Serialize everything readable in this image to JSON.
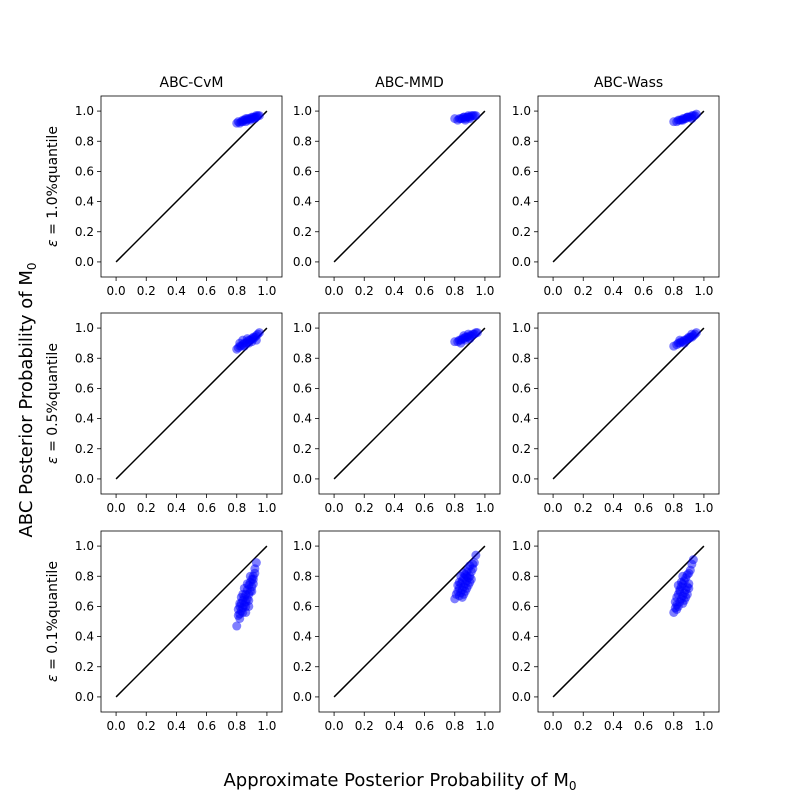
{
  "chart_data": {
    "type": "scatter",
    "title": "",
    "xlabel": "Approximate Posterior Probability of M",
    "xlabel_sub": "0",
    "ylabel": "ABC Posterior Probability of M",
    "ylabel_sub": "0",
    "column_titles": [
      "ABC-CvM",
      "ABC-MMD",
      "ABC-Wass"
    ],
    "row_labels": [
      {
        "prefix": "ε = ",
        "value": "1.0%quantile"
      },
      {
        "prefix": "ε = ",
        "value": "0.5%quantile"
      },
      {
        "prefix": "ε = ",
        "value": "0.1%quantile"
      }
    ],
    "xlim": [
      -0.1,
      1.1
    ],
    "ylim": [
      -0.1,
      1.1
    ],
    "xticks": [
      "0.0",
      "0.2",
      "0.4",
      "0.6",
      "0.8",
      "1.0"
    ],
    "yticks": [
      "0.0",
      "0.2",
      "0.4",
      "0.6",
      "0.8",
      "1.0"
    ],
    "reference_line": {
      "from": [
        0,
        0
      ],
      "to": [
        1,
        1
      ],
      "color": "#000000"
    },
    "point_color": "#0000ff",
    "panels": [
      {
        "row": 0,
        "col": 0,
        "x": [
          0.8,
          0.82,
          0.83,
          0.84,
          0.85,
          0.86,
          0.87,
          0.88,
          0.89,
          0.9,
          0.91,
          0.92,
          0.93,
          0.94,
          0.95,
          0.81,
          0.84,
          0.87,
          0.9,
          0.93,
          0.86,
          0.89,
          0.92
        ],
        "y": [
          0.92,
          0.92,
          0.93,
          0.93,
          0.94,
          0.93,
          0.94,
          0.95,
          0.95,
          0.95,
          0.96,
          0.96,
          0.96,
          0.97,
          0.97,
          0.93,
          0.94,
          0.95,
          0.96,
          0.97,
          0.95,
          0.94,
          0.95
        ]
      },
      {
        "row": 0,
        "col": 1,
        "x": [
          0.8,
          0.82,
          0.83,
          0.85,
          0.86,
          0.87,
          0.88,
          0.89,
          0.9,
          0.91,
          0.92,
          0.93,
          0.94,
          0.84,
          0.87,
          0.9,
          0.86,
          0.89
        ],
        "y": [
          0.95,
          0.94,
          0.95,
          0.95,
          0.96,
          0.95,
          0.96,
          0.96,
          0.96,
          0.97,
          0.97,
          0.97,
          0.97,
          0.95,
          0.94,
          0.95,
          0.96,
          0.97
        ]
      },
      {
        "row": 0,
        "col": 2,
        "x": [
          0.8,
          0.82,
          0.83,
          0.84,
          0.85,
          0.86,
          0.87,
          0.88,
          0.89,
          0.9,
          0.91,
          0.92,
          0.93,
          0.94,
          0.95,
          0.86,
          0.89,
          0.92
        ],
        "y": [
          0.93,
          0.93,
          0.94,
          0.94,
          0.94,
          0.95,
          0.95,
          0.95,
          0.96,
          0.96,
          0.96,
          0.97,
          0.97,
          0.97,
          0.98,
          0.94,
          0.96,
          0.95
        ]
      },
      {
        "row": 1,
        "col": 0,
        "x": [
          0.8,
          0.81,
          0.82,
          0.83,
          0.84,
          0.85,
          0.86,
          0.87,
          0.88,
          0.89,
          0.9,
          0.91,
          0.92,
          0.93,
          0.94,
          0.95,
          0.82,
          0.85,
          0.88,
          0.91,
          0.84,
          0.87,
          0.9,
          0.93
        ],
        "y": [
          0.86,
          0.87,
          0.88,
          0.88,
          0.89,
          0.9,
          0.9,
          0.91,
          0.92,
          0.92,
          0.93,
          0.93,
          0.94,
          0.95,
          0.96,
          0.97,
          0.9,
          0.88,
          0.9,
          0.94,
          0.92,
          0.93,
          0.91,
          0.92
        ]
      },
      {
        "row": 1,
        "col": 1,
        "x": [
          0.8,
          0.82,
          0.83,
          0.84,
          0.85,
          0.86,
          0.87,
          0.88,
          0.89,
          0.9,
          0.91,
          0.92,
          0.93,
          0.94,
          0.95,
          0.84,
          0.87,
          0.9,
          0.86,
          0.89
        ],
        "y": [
          0.91,
          0.91,
          0.92,
          0.92,
          0.93,
          0.93,
          0.94,
          0.94,
          0.94,
          0.95,
          0.95,
          0.96,
          0.96,
          0.97,
          0.97,
          0.9,
          0.92,
          0.93,
          0.95,
          0.96
        ]
      },
      {
        "row": 1,
        "col": 2,
        "x": [
          0.8,
          0.82,
          0.83,
          0.84,
          0.85,
          0.86,
          0.87,
          0.88,
          0.89,
          0.9,
          0.91,
          0.92,
          0.93,
          0.94,
          0.95,
          0.84,
          0.87,
          0.9,
          0.92
        ],
        "y": [
          0.88,
          0.89,
          0.9,
          0.9,
          0.91,
          0.91,
          0.92,
          0.92,
          0.93,
          0.93,
          0.94,
          0.94,
          0.95,
          0.96,
          0.97,
          0.92,
          0.9,
          0.94,
          0.96
        ]
      },
      {
        "row": 2,
        "col": 0,
        "x": [
          0.8,
          0.81,
          0.81,
          0.82,
          0.82,
          0.83,
          0.83,
          0.84,
          0.84,
          0.85,
          0.85,
          0.86,
          0.86,
          0.87,
          0.87,
          0.88,
          0.88,
          0.89,
          0.89,
          0.9,
          0.9,
          0.91,
          0.91,
          0.92,
          0.93,
          0.82,
          0.84,
          0.86,
          0.88,
          0.9,
          0.83,
          0.85,
          0.87,
          0.89,
          0.92,
          0.86,
          0.84,
          0.88,
          0.82,
          0.91
        ],
        "y": [
          0.47,
          0.54,
          0.58,
          0.55,
          0.6,
          0.57,
          0.62,
          0.59,
          0.64,
          0.61,
          0.66,
          0.63,
          0.68,
          0.65,
          0.71,
          0.68,
          0.74,
          0.7,
          0.76,
          0.73,
          0.78,
          0.75,
          0.8,
          0.82,
          0.89,
          0.52,
          0.56,
          0.6,
          0.64,
          0.7,
          0.66,
          0.72,
          0.75,
          0.8,
          0.85,
          0.56,
          0.68,
          0.6,
          0.62,
          0.78
        ]
      },
      {
        "row": 2,
        "col": 1,
        "x": [
          0.8,
          0.81,
          0.82,
          0.83,
          0.83,
          0.84,
          0.84,
          0.85,
          0.85,
          0.86,
          0.86,
          0.87,
          0.87,
          0.88,
          0.88,
          0.89,
          0.89,
          0.9,
          0.9,
          0.91,
          0.92,
          0.93,
          0.94,
          0.82,
          0.85,
          0.87,
          0.89,
          0.91,
          0.84,
          0.86,
          0.88,
          0.9,
          0.86,
          0.83,
          0.88,
          0.92
        ],
        "y": [
          0.65,
          0.68,
          0.7,
          0.67,
          0.72,
          0.69,
          0.75,
          0.71,
          0.77,
          0.73,
          0.79,
          0.75,
          0.81,
          0.77,
          0.83,
          0.79,
          0.85,
          0.8,
          0.87,
          0.83,
          0.85,
          0.89,
          0.94,
          0.74,
          0.66,
          0.7,
          0.74,
          0.78,
          0.8,
          0.82,
          0.72,
          0.76,
          0.68,
          0.76,
          0.8,
          0.88
        ]
      },
      {
        "row": 2,
        "col": 2,
        "x": [
          0.8,
          0.81,
          0.81,
          0.82,
          0.82,
          0.83,
          0.83,
          0.84,
          0.84,
          0.85,
          0.85,
          0.86,
          0.86,
          0.87,
          0.87,
          0.88,
          0.88,
          0.89,
          0.89,
          0.9,
          0.9,
          0.91,
          0.92,
          0.93,
          0.82,
          0.84,
          0.86,
          0.88,
          0.9,
          0.83,
          0.85,
          0.87,
          0.89,
          0.86
        ],
        "y": [
          0.56,
          0.59,
          0.63,
          0.61,
          0.66,
          0.6,
          0.68,
          0.63,
          0.71,
          0.65,
          0.73,
          0.67,
          0.75,
          0.69,
          0.77,
          0.71,
          0.79,
          0.73,
          0.81,
          0.75,
          0.82,
          0.84,
          0.88,
          0.91,
          0.58,
          0.7,
          0.62,
          0.66,
          0.72,
          0.74,
          0.76,
          0.64,
          0.68,
          0.8
        ]
      }
    ]
  }
}
